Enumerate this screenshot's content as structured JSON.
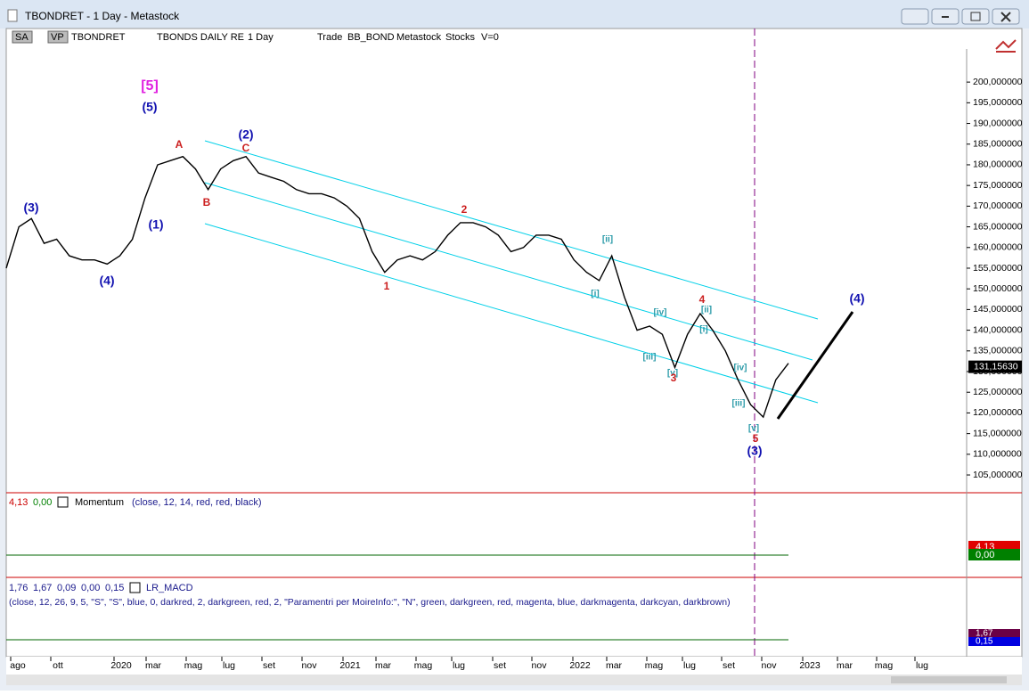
{
  "window": {
    "title": "TBONDRET - 1 Day - Metastock"
  },
  "toolbar": {
    "items": [
      "SA",
      "VP",
      "TBONDRET",
      "TBONDS DAILY RE",
      "1 Day",
      "Trade",
      "BB_BOND",
      "Metastock",
      "Stocks",
      "V=0"
    ]
  },
  "chart_data": {
    "type": "line",
    "color": "#000000",
    "values": [
      155,
      165,
      167,
      161,
      162,
      158,
      157,
      157,
      156,
      158,
      162,
      172,
      180,
      181,
      182,
      179,
      174,
      179,
      181,
      182,
      178,
      177,
      176,
      174,
      173,
      173,
      172,
      170,
      167,
      159,
      154,
      157,
      158,
      157,
      159,
      163,
      166,
      166,
      165,
      163,
      159,
      160,
      163,
      163,
      162,
      157,
      154,
      152,
      158,
      148,
      140,
      141,
      139,
      131,
      139,
      144,
      140,
      135,
      128,
      122,
      119,
      128,
      132
    ],
    "ylim": [
      100.7,
      208
    ],
    "yticks": [
      {
        "value": 105,
        "label": "105,000000"
      },
      {
        "value": 110,
        "label": "110,000000"
      },
      {
        "value": 115,
        "label": "115,000000"
      },
      {
        "value": 120,
        "label": "120,000000"
      },
      {
        "value": 125,
        "label": "125,000000"
      },
      {
        "value": 130,
        "label": "130,000000"
      },
      {
        "value": 135,
        "label": "135,000000"
      },
      {
        "value": 140,
        "label": "140,000000"
      },
      {
        "value": 145,
        "label": "145,000000"
      },
      {
        "value": 150,
        "label": "150,000000"
      },
      {
        "value": 155,
        "label": "155,000000"
      },
      {
        "value": 160,
        "label": "160,000000"
      },
      {
        "value": 165,
        "label": "165,000000"
      },
      {
        "value": 170,
        "label": "170,000000"
      },
      {
        "value": 175,
        "label": "175,000000"
      },
      {
        "value": 180,
        "label": "180,000000"
      },
      {
        "value": 185,
        "label": "185,000000"
      },
      {
        "value": 190,
        "label": "190,000000"
      },
      {
        "value": 195,
        "label": "195,000000"
      },
      {
        "value": 200,
        "label": "200,000000"
      }
    ],
    "last_price": {
      "value": 131.1563,
      "label": "131,15630"
    }
  },
  "time_axis": {
    "labels": [
      "ago",
      "ott",
      "2020",
      "mar",
      "mag",
      "lug",
      "set",
      "nov",
      "2021",
      "mar",
      "mag",
      "lug",
      "set",
      "nov",
      "2022",
      "mar",
      "mag",
      "lug",
      "set",
      "nov",
      "2023",
      "mar",
      "mag",
      "lug"
    ]
  },
  "wave_labels": [
    "[5]",
    "(5)",
    "A",
    "(2)",
    "C",
    "B",
    "(3)",
    "(1)",
    "(4)",
    "2",
    "1",
    "[ii]",
    "[i]",
    "4",
    "[iv]",
    "[ii]",
    "[i]",
    "[iii]",
    "[v]",
    "3",
    "[iv]",
    "[iii]",
    "[v]",
    "5",
    "(3)",
    "(4)"
  ],
  "momentum": {
    "readout": [
      "4,13",
      "0,00"
    ],
    "name": "Momentum",
    "params": "(close,  12,  14,  red,  red,  black)"
  },
  "macd": {
    "readout": [
      "1,76",
      "1,67",
      "0,09",
      "0,00",
      "0,15"
    ],
    "name": "LR_MACD",
    "params": "(close,  12,  26,  9,  5,  \"S\",  \"S\",  blue,  0,  darkred,  2,  darkgreen,  red,  2,  \"Paramentri per MoireInfo:\",  \"N\",  green,  darkgreen,  red,  magenta,  blue,  darkmagenta,  darkcyan,  darkbrown)",
    "badges": [
      "1,67",
      "0,15"
    ]
  }
}
